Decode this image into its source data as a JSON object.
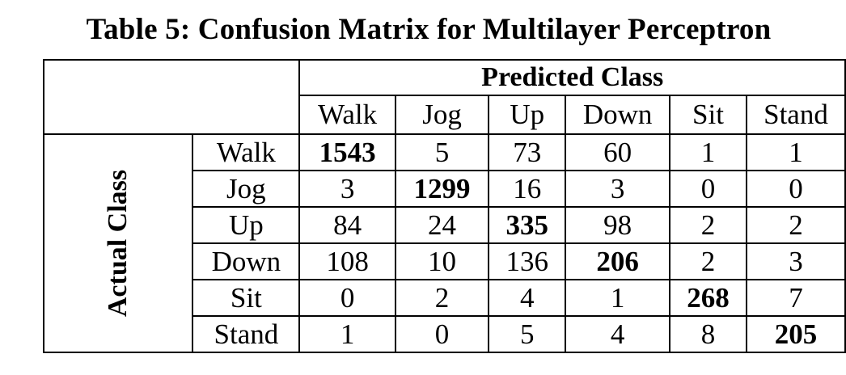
{
  "caption": "Table 5: Confusion Matrix for Multilayer Perceptron",
  "predicted_header": "Predicted Class",
  "actual_header": "Actual Class",
  "columns": [
    "Walk",
    "Jog",
    "Up",
    "Down",
    "Sit",
    "Stand"
  ],
  "rows": [
    {
      "label": "Walk",
      "values": [
        "1543",
        "5",
        "73",
        "60",
        "1",
        "1"
      ]
    },
    {
      "label": "Jog",
      "values": [
        "3",
        "1299",
        "16",
        "3",
        "0",
        "0"
      ]
    },
    {
      "label": "Up",
      "values": [
        "84",
        "24",
        "335",
        "98",
        "2",
        "2"
      ]
    },
    {
      "label": "Down",
      "values": [
        "108",
        "10",
        "136",
        "206",
        "2",
        "3"
      ]
    },
    {
      "label": "Sit",
      "values": [
        "0",
        "2",
        "4",
        "1",
        "268",
        "7"
      ]
    },
    {
      "label": "Stand",
      "values": [
        "1",
        "0",
        "5",
        "4",
        "8",
        "205"
      ]
    }
  ]
}
